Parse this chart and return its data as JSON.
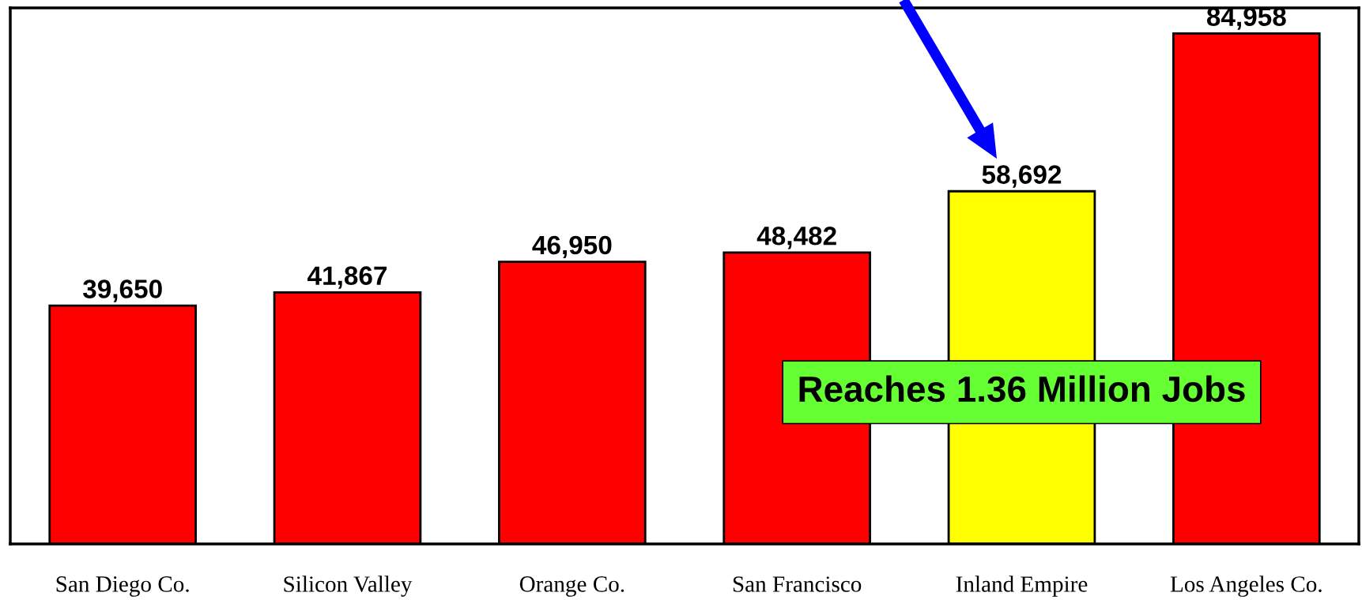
{
  "chart_data": {
    "type": "bar",
    "categories": [
      "San Diego Co.",
      "Silicon Valley",
      "Orange Co.",
      "San Francisco",
      "Inland Empire",
      "Los Angeles Co."
    ],
    "values": [
      39650,
      41867,
      46950,
      48482,
      58692,
      84958
    ],
    "value_labels": [
      "39,650",
      "41,867",
      "46,950",
      "48,482",
      "58,692",
      "84,958"
    ],
    "colors": [
      "#ff0000",
      "#ff0000",
      "#ff0000",
      "#ff0000",
      "#ffff00",
      "#ff0000"
    ],
    "grid": false,
    "tick_labels": "x",
    "annotations": [
      "Reaches 1.36 Million Jobs"
    ]
  }
}
